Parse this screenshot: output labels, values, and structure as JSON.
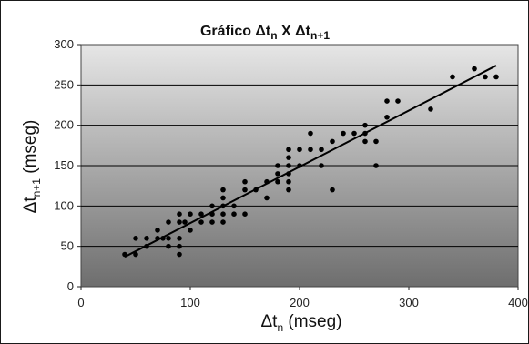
{
  "chart_data": {
    "type": "scatter",
    "title": {
      "main": "Gráfico Δt",
      "sub1": "n",
      "mid": " X Δt",
      "sub2": "n+1"
    },
    "xlabel": {
      "main": "Δt",
      "sub": "n",
      "rest": " (mseg)"
    },
    "ylabel": {
      "main": "Δt",
      "sub": "n+1",
      "rest": " (mseg)"
    },
    "xlim": [
      0,
      400
    ],
    "ylim": [
      0,
      300
    ],
    "x_ticks": [
      0,
      100,
      200,
      300,
      400
    ],
    "y_ticks": [
      0,
      50,
      100,
      150,
      200,
      250,
      300
    ],
    "grid": "horizontal",
    "trendline": {
      "x": [
        40,
        380
      ],
      "y": [
        37,
        274
      ]
    },
    "points": [
      [
        40,
        40
      ],
      [
        50,
        40
      ],
      [
        50,
        60
      ],
      [
        60,
        50
      ],
      [
        60,
        60
      ],
      [
        70,
        60
      ],
      [
        70,
        70
      ],
      [
        75,
        60
      ],
      [
        80,
        50
      ],
      [
        80,
        60
      ],
      [
        80,
        80
      ],
      [
        90,
        40
      ],
      [
        90,
        50
      ],
      [
        90,
        60
      ],
      [
        90,
        80
      ],
      [
        90,
        90
      ],
      [
        95,
        80
      ],
      [
        100,
        70
      ],
      [
        100,
        90
      ],
      [
        110,
        80
      ],
      [
        110,
        90
      ],
      [
        120,
        80
      ],
      [
        120,
        90
      ],
      [
        120,
        100
      ],
      [
        130,
        80
      ],
      [
        130,
        90
      ],
      [
        130,
        100
      ],
      [
        130,
        110
      ],
      [
        130,
        120
      ],
      [
        140,
        90
      ],
      [
        140,
        100
      ],
      [
        150,
        90
      ],
      [
        150,
        120
      ],
      [
        150,
        130
      ],
      [
        160,
        120
      ],
      [
        170,
        110
      ],
      [
        170,
        130
      ],
      [
        180,
        130
      ],
      [
        180,
        140
      ],
      [
        180,
        150
      ],
      [
        190,
        120
      ],
      [
        190,
        130
      ],
      [
        190,
        140
      ],
      [
        190,
        150
      ],
      [
        190,
        160
      ],
      [
        190,
        170
      ],
      [
        200,
        150
      ],
      [
        200,
        170
      ],
      [
        210,
        170
      ],
      [
        210,
        190
      ],
      [
        220,
        150
      ],
      [
        220,
        170
      ],
      [
        230,
        120
      ],
      [
        230,
        180
      ],
      [
        240,
        190
      ],
      [
        250,
        190
      ],
      [
        260,
        180
      ],
      [
        260,
        190
      ],
      [
        260,
        200
      ],
      [
        270,
        150
      ],
      [
        270,
        180
      ],
      [
        280,
        210
      ],
      [
        280,
        230
      ],
      [
        290,
        230
      ],
      [
        320,
        220
      ],
      [
        340,
        260
      ],
      [
        360,
        270
      ],
      [
        370,
        260
      ],
      [
        380,
        260
      ]
    ],
    "colors": {
      "plot_top": "#e6e6e6",
      "plot_bottom": "#6e6e6e",
      "point": "#000000",
      "trendline": "#000000",
      "grid": "#000000"
    }
  }
}
